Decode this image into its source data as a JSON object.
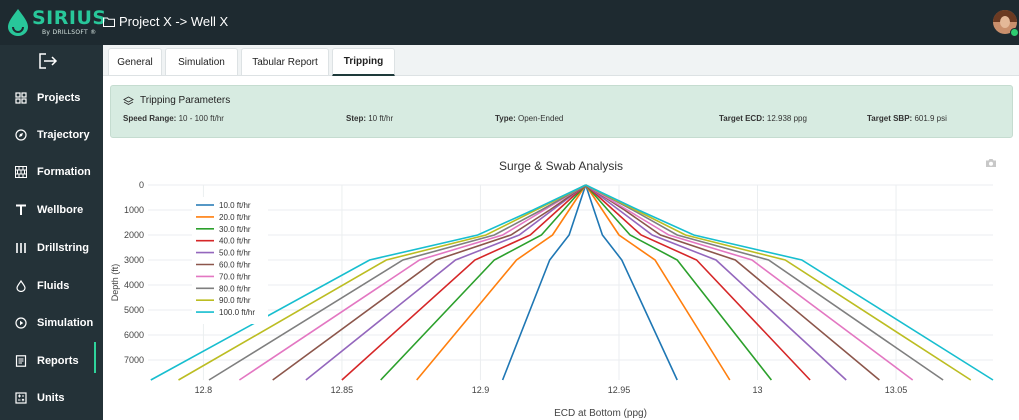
{
  "brand": {
    "name": "SIRIUS",
    "tagline": "By DRILLSOFT ®"
  },
  "header": {
    "breadcrumb": "Project X -> Well X"
  },
  "sidebar": {
    "items": [
      {
        "label": "Projects",
        "icon": "grid-icon"
      },
      {
        "label": "Trajectory",
        "icon": "compass-icon"
      },
      {
        "label": "Formation",
        "icon": "bricks-icon"
      },
      {
        "label": "Wellbore",
        "icon": "wellbore-icon"
      },
      {
        "label": "Drillstring",
        "icon": "drillstring-icon"
      },
      {
        "label": "Fluids",
        "icon": "drop-icon"
      },
      {
        "label": "Simulation",
        "icon": "play-icon"
      },
      {
        "label": "Reports",
        "icon": "report-icon",
        "active": true
      },
      {
        "label": "Units",
        "icon": "units-icon"
      }
    ]
  },
  "tabs": [
    {
      "label": "General"
    },
    {
      "label": "Simulation"
    },
    {
      "label": "Tabular Report"
    },
    {
      "label": "Tripping",
      "active": true
    }
  ],
  "params": {
    "title": "Tripping Parameters",
    "speed_label": "Speed Range:",
    "speed_value": "10 - 100 ft/hr",
    "step_label": "Step:",
    "step_value": "10 ft/hr",
    "type_label": "Type:",
    "type_value": "Open-Ended",
    "ecd_label": "Target ECD:",
    "ecd_value": "12.938 ppg",
    "sbp_label": "Target SBP:",
    "sbp_value": "601.9 psi"
  },
  "colors": {
    "accent": "#2fd39b",
    "topbar": "#1e2a30",
    "sidebar": "#243238",
    "panel": "#d7ebe1"
  },
  "chart_data": {
    "type": "line",
    "title": "Surge & Swab Analysis",
    "xlabel": "ECD at Bottom (ppg)",
    "ylabel": "Depth (ft)",
    "xlim": [
      12.78,
      13.085
    ],
    "ylim": [
      7800,
      0
    ],
    "x_ticks": [
      "12.8",
      "12.85",
      "12.9",
      "12.95",
      "13",
      "13.05"
    ],
    "y_ticks": [
      "0",
      "1000",
      "2000",
      "3000",
      "4000",
      "5000",
      "6000",
      "7000"
    ],
    "legend_position": "top-left",
    "depth": [
      0,
      1000,
      2000,
      3000,
      7800
    ],
    "series": [
      {
        "name": "10.0 ft/hr",
        "color": "#1f77b4",
        "left": [
          12.938,
          12.935,
          12.932,
          12.925,
          12.908
        ],
        "right": [
          12.938,
          12.941,
          12.944,
          12.951,
          12.971
        ]
      },
      {
        "name": "20.0 ft/hr",
        "color": "#ff7f0e",
        "left": [
          12.938,
          12.932,
          12.926,
          12.913,
          12.877
        ],
        "right": [
          12.938,
          12.944,
          12.95,
          12.963,
          12.99
        ]
      },
      {
        "name": "30.0 ft/hr",
        "color": "#2ca02c",
        "left": [
          12.938,
          12.93,
          12.922,
          12.905,
          12.864
        ],
        "right": [
          12.938,
          12.946,
          12.954,
          12.971,
          13.005
        ]
      },
      {
        "name": "40.0 ft/hr",
        "color": "#d62728",
        "left": [
          12.938,
          12.928,
          12.918,
          12.898,
          12.85
        ],
        "right": [
          12.938,
          12.948,
          12.958,
          12.978,
          13.019
        ]
      },
      {
        "name": "50.0 ft/hr",
        "color": "#9467bd",
        "left": [
          12.938,
          12.926,
          12.914,
          12.891,
          12.837
        ],
        "right": [
          12.938,
          12.95,
          12.962,
          12.985,
          13.032
        ]
      },
      {
        "name": "60.0 ft/hr",
        "color": "#8c564b",
        "left": [
          12.938,
          12.925,
          12.911,
          12.884,
          12.825
        ],
        "right": [
          12.938,
          12.952,
          12.965,
          12.992,
          13.044
        ]
      },
      {
        "name": "70.0 ft/hr",
        "color": "#e377c2",
        "left": [
          12.938,
          12.923,
          12.908,
          12.878,
          12.813
        ],
        "right": [
          12.938,
          12.953,
          12.968,
          12.998,
          13.056
        ]
      },
      {
        "name": "80.0 ft/hr",
        "color": "#7f7f7f",
        "left": [
          12.938,
          12.922,
          12.905,
          12.872,
          12.802
        ],
        "right": [
          12.938,
          12.955,
          12.971,
          13.004,
          13.067
        ]
      },
      {
        "name": "90.0 ft/hr",
        "color": "#bcbd22",
        "left": [
          12.938,
          12.92,
          12.902,
          12.866,
          12.791
        ],
        "right": [
          12.938,
          12.956,
          12.974,
          13.01,
          13.077
        ]
      },
      {
        "name": "100.0 ft/hr",
        "color": "#17becf",
        "left": [
          12.938,
          12.919,
          12.899,
          12.86,
          12.781
        ],
        "right": [
          12.938,
          12.957,
          12.977,
          13.016,
          13.085
        ]
      }
    ]
  }
}
